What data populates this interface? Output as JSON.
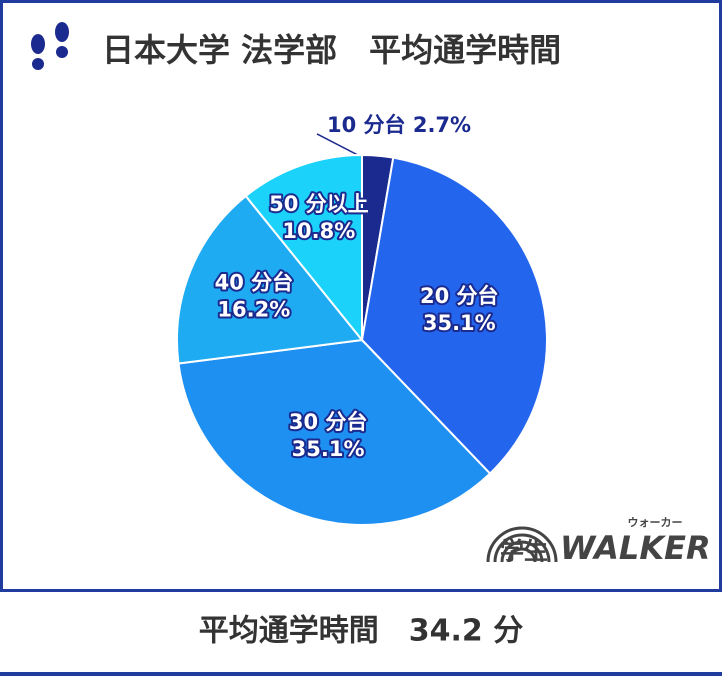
{
  "chart_data": {
    "type": "pie",
    "title": "日本大学 法学部　平均通学時間",
    "categories": [
      "10 分台",
      "20 分台",
      "30 分台",
      "40 分台",
      "50 分以上"
    ],
    "values": [
      2.7,
      35.1,
      35.1,
      16.2,
      10.8
    ],
    "value_labels": [
      "2.7%",
      "35.1%",
      "35.1%",
      "16.2%",
      "10.8%"
    ],
    "colors": [
      "#1b2a8f",
      "#2465ee",
      "#1e90f2",
      "#1fabf2",
      "#1ad2fa"
    ],
    "start_angle": 90,
    "direction": "clockwise",
    "footer": "平均通学時間　34.2 分"
  },
  "logo": {
    "name": "学生",
    "brand": "WALKER",
    "reading": "ウォーカー"
  }
}
